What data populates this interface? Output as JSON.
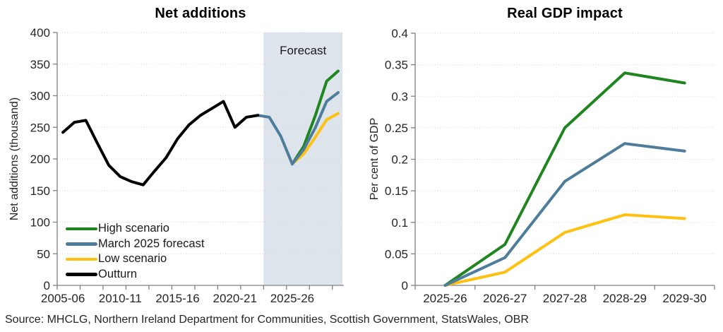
{
  "source_note": "Source: MHCLG, Northern Ireland Department for Communities, Scottish Government, StatsWales, OBR",
  "colors": {
    "high_scenario": "#1f851f",
    "march_2025_forecast": "#4e7d9c",
    "low_scenario": "#fec110",
    "outturn": "#000000",
    "forecast_band": "#dde4ec",
    "gridline": "#d9d9d9",
    "axis": "#808080",
    "tick_text": "#262626"
  },
  "legend": {
    "items": [
      {
        "label": "High scenario",
        "series": "High scenario"
      },
      {
        "label": "March 2025 forecast",
        "series": "March 2025 forecast"
      },
      {
        "label": "Low scenario",
        "series": "Low scenario"
      },
      {
        "label": "Outturn",
        "series": "Outturn"
      }
    ]
  },
  "chart_data": [
    {
      "type": "line",
      "title": "Net additions",
      "ylabel": "Net additions (thousand)",
      "xlabel": "",
      "ylim": [
        0,
        400
      ],
      "ytick_step": 50,
      "ytick_labels": [
        "0",
        "50",
        "100",
        "150",
        "200",
        "250",
        "300",
        "350",
        "400"
      ],
      "grid": true,
      "legend_position": "bottom-left",
      "categories": [
        "2005-06",
        "2006-07",
        "2007-08",
        "2008-09",
        "2009-10",
        "2010-11",
        "2011-12",
        "2012-13",
        "2013-14",
        "2014-15",
        "2015-16",
        "2016-17",
        "2017-18",
        "2018-19",
        "2019-20",
        "2020-21",
        "2021-22",
        "2022-23",
        "2023-24",
        "2024-25",
        "2025-26",
        "2026-27",
        "2027-28",
        "2028-29",
        "2029-30"
      ],
      "xtick_label_indices": [
        0,
        5,
        10,
        15,
        20
      ],
      "xtick_labels": [
        "2005-06",
        "2010-11",
        "2015-16",
        "2020-21",
        "2025-26"
      ],
      "forecast_band": {
        "label": "Forecast",
        "start_category": "2023-24",
        "start_index": 18
      },
      "series": [
        {
          "name": "High scenario",
          "color_key": "high_scenario",
          "start_index": 20,
          "values": [
            192,
            220,
            268,
            323,
            339
          ]
        },
        {
          "name": "Low scenario",
          "color_key": "low_scenario",
          "start_index": 20,
          "values": [
            192,
            208,
            234,
            262,
            272
          ]
        },
        {
          "name": "March 2025 forecast",
          "color_key": "march_2025_forecast",
          "start_index": 17,
          "values": [
            269,
            266,
            236,
            192,
            215,
            249,
            291,
            305
          ]
        },
        {
          "name": "Outturn",
          "color_key": "outturn",
          "start_index": 0,
          "values": [
            242,
            258,
            261,
            225,
            190,
            172,
            164,
            159,
            181,
            202,
            232,
            254,
            269,
            280,
            291,
            250,
            266,
            269
          ]
        }
      ]
    },
    {
      "type": "line",
      "title": "Real GDP impact",
      "ylabel": "Per cent of GDP",
      "xlabel": "",
      "ylim": [
        0,
        0.4
      ],
      "ytick_step": 0.05,
      "ytick_labels": [
        "0",
        "0.05",
        "0.1",
        "0.15",
        "0.2",
        "0.25",
        "0.3",
        "0.35",
        "0.4"
      ],
      "grid": true,
      "categories": [
        "2025-26",
        "2026-27",
        "2027-28",
        "2028-29",
        "2029-30"
      ],
      "xtick_label_indices": [
        0,
        1,
        2,
        3,
        4
      ],
      "xtick_labels": [
        "2025-26",
        "2026-27",
        "2027-28",
        "2028-29",
        "2029-30"
      ],
      "series": [
        {
          "name": "High scenario",
          "color_key": "high_scenario",
          "start_index": 0,
          "values": [
            0,
            0.065,
            0.25,
            0.337,
            0.321
          ]
        },
        {
          "name": "Low scenario",
          "color_key": "low_scenario",
          "start_index": 0,
          "values": [
            0,
            0.021,
            0.084,
            0.112,
            0.106
          ]
        },
        {
          "name": "March 2025 forecast",
          "color_key": "march_2025_forecast",
          "start_index": 0,
          "values": [
            0,
            0.044,
            0.165,
            0.225,
            0.213
          ]
        }
      ]
    }
  ]
}
